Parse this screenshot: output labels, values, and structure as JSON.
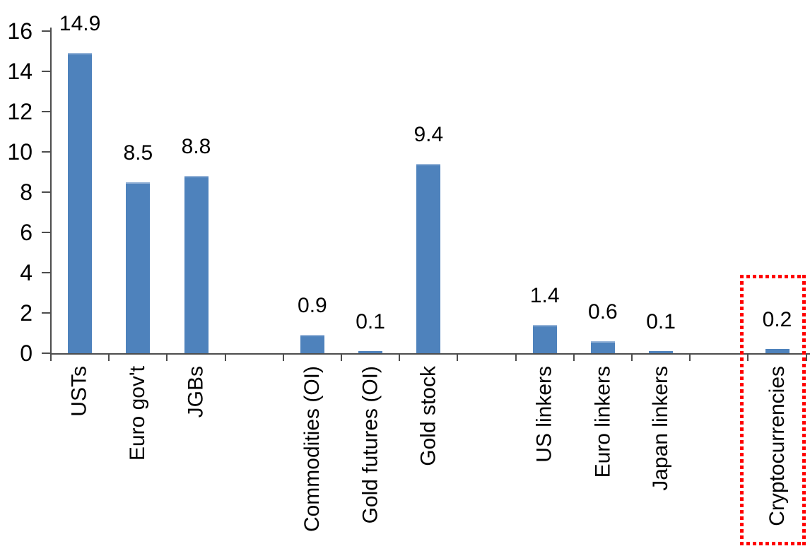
{
  "chart_data": {
    "type": "bar",
    "categories": [
      "USTs",
      "Euro gov't",
      "JGBs",
      "Commodities (OI)",
      "Gold futures (OI)",
      "Gold stock",
      "US linkers",
      "Euro linkers",
      "Japan linkers",
      "Cryptocurrencies"
    ],
    "values": [
      14.9,
      8.5,
      8.8,
      0.9,
      0.1,
      9.4,
      1.4,
      0.6,
      0.1,
      0.2
    ],
    "value_labels": [
      "14.9",
      "8.5",
      "8.8",
      "0.9",
      "0.1",
      "9.4",
      "1.4",
      "0.6",
      "0.1",
      "0.2"
    ],
    "slot_of_category": [
      0,
      1,
      2,
      4,
      5,
      6,
      8,
      9,
      10,
      12
    ],
    "num_slots": 13,
    "ylim": [
      0,
      16
    ],
    "yticks": [
      0,
      2,
      4,
      6,
      8,
      10,
      12,
      14,
      16
    ],
    "grid": false,
    "legend": "none",
    "x_label_rotation_deg": -90,
    "bar_color": "#4E82BC",
    "bar_top_edge_color": "#95B3D7",
    "axis_color": "#4d4d4d",
    "text_color": "#000000",
    "highlight": {
      "target_category": "Cryptocurrencies",
      "shape": "dotted-rectangle",
      "color": "#FF0000"
    }
  }
}
